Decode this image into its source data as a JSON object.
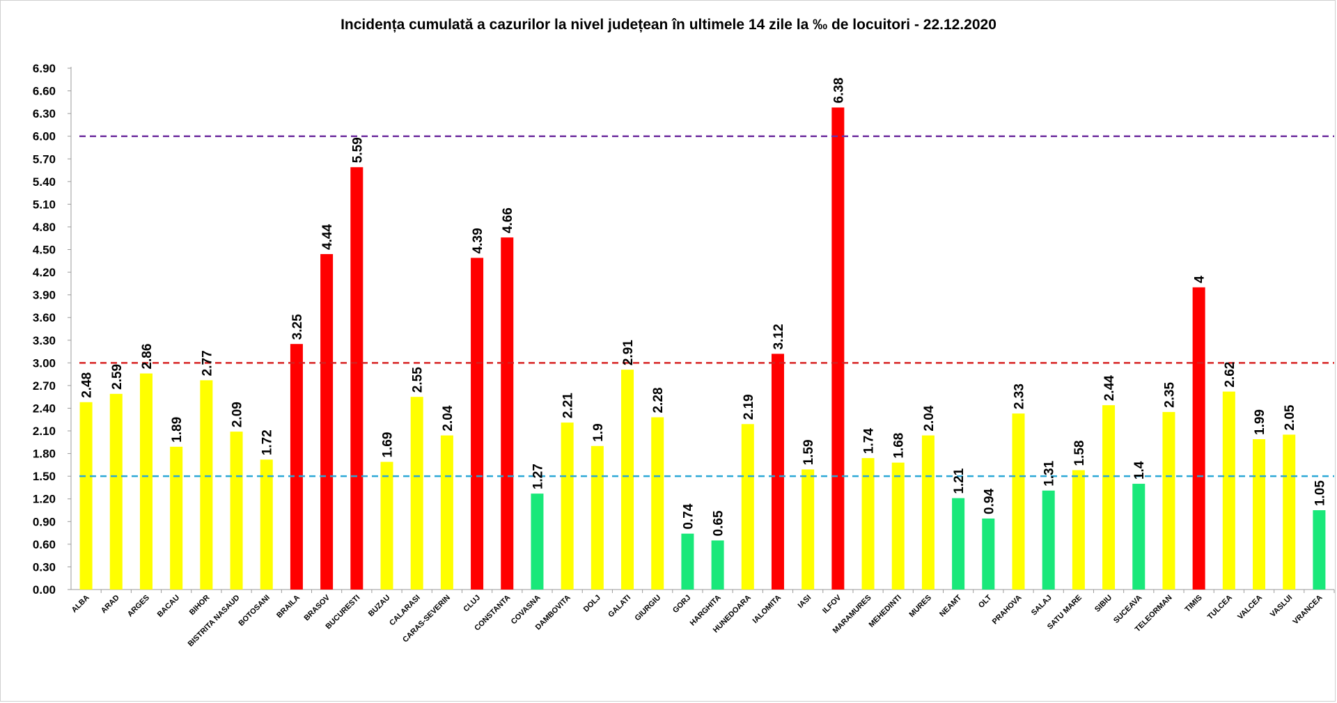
{
  "chart_data": {
    "type": "bar",
    "title": "Incidența cumulată a cazurilor la nivel județean în ultimele 14 zile la ‰ de locuitori - 22.12.2020",
    "xlabel": "",
    "ylabel": "",
    "ylim": [
      0,
      6.9
    ],
    "yticks": [
      "0.00",
      "0.30",
      "0.60",
      "0.90",
      "1.20",
      "1.50",
      "1.80",
      "2.10",
      "2.40",
      "2.70",
      "3.00",
      "3.30",
      "3.60",
      "3.90",
      "4.20",
      "4.50",
      "4.80",
      "5.10",
      "5.40",
      "5.70",
      "6.00",
      "6.30",
      "6.60",
      "6.90"
    ],
    "grid": false,
    "legend": "none",
    "categories": [
      "ALBA",
      "ARAD",
      "ARGES",
      "BACAU",
      "BIHOR",
      "BISTRITA NASAUD",
      "BOTOSANI",
      "BRAILA",
      "BRASOV",
      "BUCURESTI",
      "BUZAU",
      "CALARASI",
      "CARAS-SEVERIN",
      "CLUJ",
      "CONSTANTA",
      "COVASNA",
      "DAMBOVITA",
      "DOLJ",
      "GALATI",
      "GIURGIU",
      "GORJ",
      "HARGHITA",
      "HUNEDOARA",
      "IALOMITA",
      "IASI",
      "ILFOV",
      "MARAMURES",
      "MEHEDINTI",
      "MURES",
      "NEAMT",
      "OLT",
      "PRAHOVA",
      "SALAJ",
      "SATU MARE",
      "SIBIU",
      "SUCEAVA",
      "TELEORMAN",
      "TIMIS",
      "TULCEA",
      "VALCEA",
      "VASLUI",
      "VRANCEA"
    ],
    "values": [
      2.48,
      2.59,
      2.86,
      1.89,
      2.77,
      2.09,
      1.72,
      3.25,
      4.44,
      5.59,
      1.69,
      2.55,
      2.04,
      4.39,
      4.66,
      1.27,
      2.21,
      1.9,
      2.91,
      2.28,
      0.74,
      0.65,
      2.19,
      3.12,
      1.59,
      6.38,
      1.74,
      1.68,
      2.04,
      1.21,
      0.94,
      2.33,
      1.31,
      1.58,
      2.44,
      1.4,
      2.35,
      4,
      2.62,
      1.99,
      2.05,
      1.05
    ],
    "data_labels": [
      "2.48",
      "2.59",
      "2.86",
      "1.89",
      "2.77",
      "2.09",
      "1.72",
      "3.25",
      "4.44",
      "5.59",
      "1.69",
      "2.55",
      "2.04",
      "4.39",
      "4.66",
      "1.27",
      "2.21",
      "1.9",
      "2.91",
      "2.28",
      "0.74",
      "0.65",
      "2.19",
      "3.12",
      "1.59",
      "6.38",
      "1.74",
      "1.68",
      "2.04",
      "1.21",
      "0.94",
      "2.33",
      "1.31",
      "1.58",
      "2.44",
      "1.4",
      "2.35",
      "4",
      "2.62",
      "1.99",
      "2.05",
      "1.05"
    ],
    "thresholds": [
      {
        "value": 1.5,
        "color": "#2aa7d6"
      },
      {
        "value": 3.0,
        "color": "#d62020"
      },
      {
        "value": 6.0,
        "color": "#7030a0"
      }
    ],
    "colors": {
      "green": "#19e87a",
      "yellow": "#ffff00",
      "red": "#ff0000",
      "axis": "#9a9a9a"
    }
  }
}
